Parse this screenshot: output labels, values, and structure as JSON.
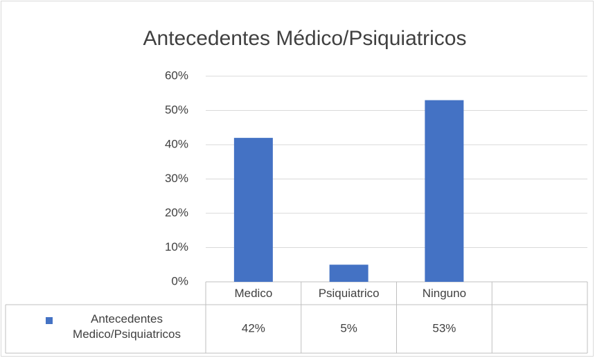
{
  "chart_data": {
    "type": "bar",
    "title": "Antecedentes Médico/Psiquiatricos",
    "categories": [
      "Medico",
      "Psiquiatrico",
      "Ninguno",
      null
    ],
    "series": [
      {
        "name": "Antecedentes Medico/Psiquiatricos",
        "color": "#4472c4",
        "values": [
          42,
          5,
          53,
          null
        ],
        "value_labels": [
          "42%",
          "5%",
          "53%",
          null
        ]
      }
    ],
    "ylim": [
      0,
      60
    ],
    "yticks": [
      {
        "value": 0,
        "label": "0%"
      },
      {
        "value": 10,
        "label": "10%"
      },
      {
        "value": 20,
        "label": "20%"
      },
      {
        "value": 30,
        "label": "30%"
      },
      {
        "value": 40,
        "label": "40%"
      },
      {
        "value": 50,
        "label": "50%"
      },
      {
        "value": 60,
        "label": "60%"
      }
    ],
    "grid": true
  }
}
